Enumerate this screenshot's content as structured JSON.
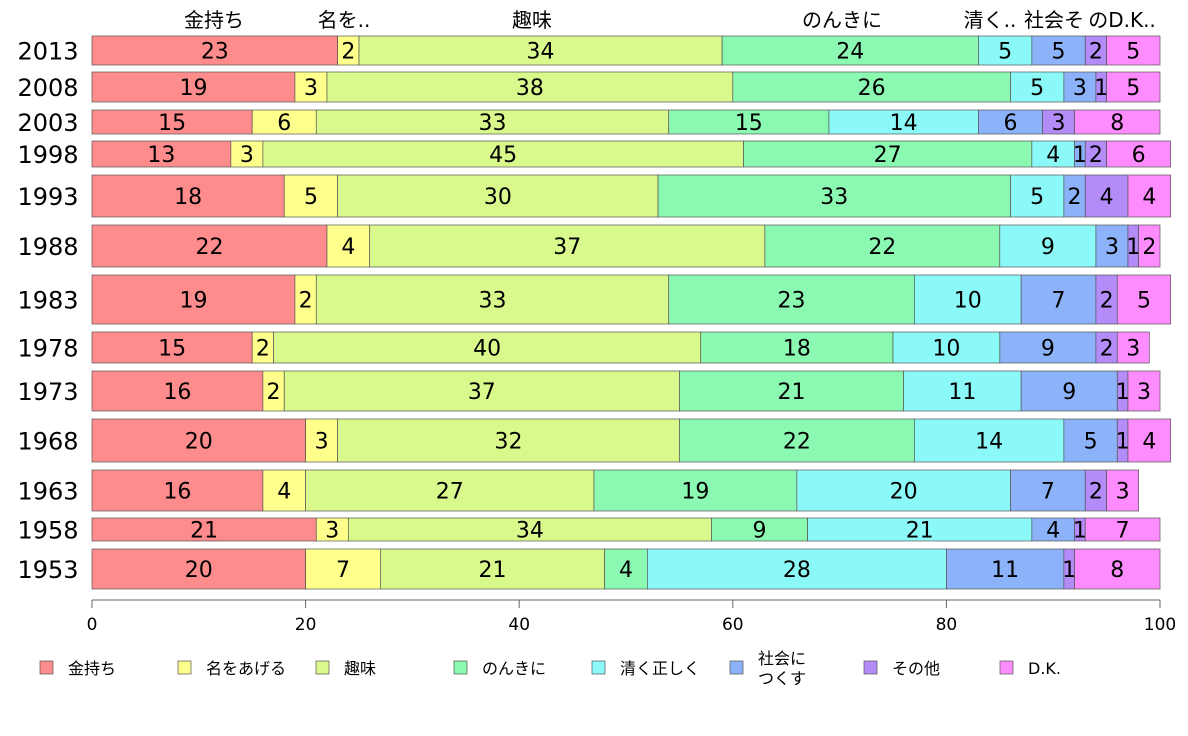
{
  "chart_data": {
    "type": "bar",
    "orientation": "horizontal",
    "stacked": true,
    "categories": [
      "2013",
      "2008",
      "2003",
      "1998",
      "1993",
      "1988",
      "1983",
      "1978",
      "1973",
      "1968",
      "1963",
      "1958",
      "1953"
    ],
    "series": [
      {
        "name": "金持ち",
        "color": "#ff8c8c",
        "values": [
          23,
          19,
          15,
          13,
          18,
          22,
          19,
          15,
          16,
          20,
          16,
          21,
          20
        ]
      },
      {
        "name": "名をあげる",
        "color": "#ffff8c",
        "values": [
          2,
          3,
          6,
          3,
          5,
          4,
          2,
          2,
          2,
          3,
          4,
          3,
          7
        ]
      },
      {
        "name": "趣味",
        "color": "#d9f98c",
        "values": [
          34,
          38,
          33,
          45,
          30,
          37,
          33,
          40,
          37,
          32,
          27,
          34,
          21
        ]
      },
      {
        "name": "のんきに",
        "color": "#8cf9b3",
        "values": [
          24,
          26,
          15,
          27,
          33,
          22,
          23,
          18,
          21,
          22,
          19,
          9,
          4
        ]
      },
      {
        "name": "清く正しく",
        "color": "#8cf9f9",
        "values": [
          5,
          5,
          14,
          4,
          5,
          9,
          10,
          10,
          11,
          14,
          20,
          21,
          28
        ]
      },
      {
        "name": "社会に\nつくす",
        "color": "#8cb3f9",
        "values": [
          5,
          3,
          6,
          1,
          2,
          3,
          7,
          9,
          9,
          5,
          7,
          4,
          11
        ]
      },
      {
        "name": "その他",
        "color": "#b38cf9",
        "values": [
          2,
          1,
          3,
          2,
          4,
          1,
          2,
          2,
          1,
          1,
          2,
          1,
          1
        ]
      },
      {
        "name": "D.K.",
        "color": "#ff8cff",
        "values": [
          5,
          5,
          8,
          6,
          4,
          2,
          5,
          3,
          3,
          4,
          3,
          7,
          8
        ]
      }
    ],
    "top_labels": [
      "金持ち",
      "名を..",
      "趣味",
      "のんきに",
      "清く..",
      "社会そ",
      "のD.K.."
    ],
    "xlim": [
      0,
      100
    ],
    "xticks": [
      "0",
      "20",
      "40",
      "60",
      "80",
      "100"
    ],
    "grid": false,
    "legend_position": "bottom"
  }
}
